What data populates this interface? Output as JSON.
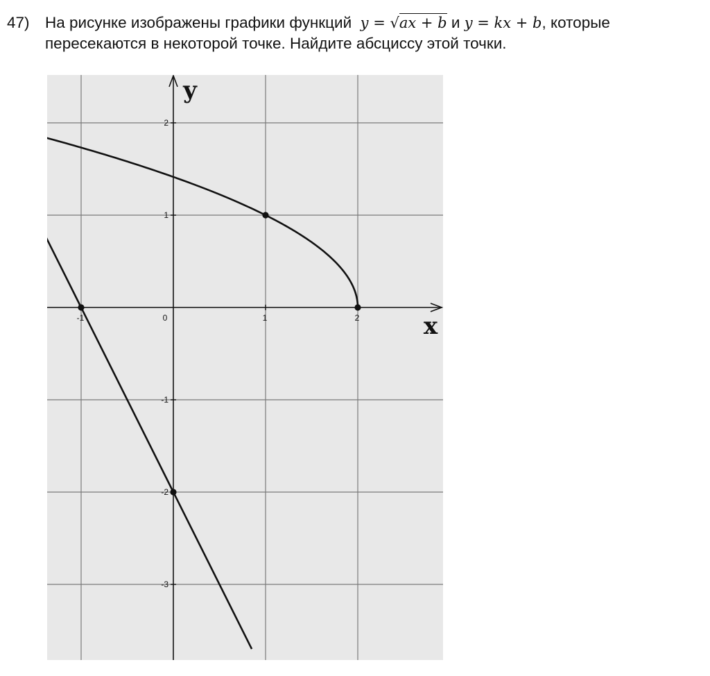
{
  "problem": {
    "number": "47)",
    "line1_text": "На рисунке изображены графики функций",
    "formula1_prefix": "y = ",
    "formula1_sqrt_symbol": "√",
    "formula1_radicand": "ax + b",
    "conjunction": "и",
    "formula2": "y = kx + b",
    "line1_tail": ", которые",
    "line2_text": "пересекаются в некоторой точке. Найдите абсциссу этой точки."
  },
  "graph": {
    "x_axis_label": "x",
    "y_axis_label": "y",
    "origin_label": "0",
    "x_tick_labels": [
      "-1",
      "1",
      "2"
    ],
    "y_tick_labels": [
      "2",
      "1",
      "-1",
      "-2",
      "-3"
    ],
    "colors": {
      "background": "#e8e8e8",
      "grid": "#7a7a7a",
      "axes": "#111111",
      "curve": "#111111"
    }
  },
  "chart_data": {
    "type": "line",
    "title": "",
    "xlabel": "x",
    "ylabel": "y",
    "xlim": [
      -1.4,
      2.9
    ],
    "ylim": [
      -3.8,
      2.5
    ],
    "grid": true,
    "series": [
      {
        "function": "y = √(ax + b)",
        "x": [
          -1.4,
          -1,
          -0.5,
          0,
          0.5,
          1,
          1.5,
          1.9,
          2
        ],
        "y": [
          1.84,
          1.73,
          1.58,
          1.41,
          1.22,
          1.0,
          0.71,
          0.32,
          0
        ]
      },
      {
        "function": "y = kx + b",
        "x": [
          -1.4,
          -1,
          0,
          0.85
        ],
        "y": [
          0.8,
          0,
          -2,
          -3.7
        ]
      }
    ],
    "marked_points": [
      {
        "x": 1,
        "y": 1
      },
      {
        "x": 2,
        "y": 0
      },
      {
        "x": -1,
        "y": 0
      },
      {
        "x": 0,
        "y": -2
      }
    ]
  }
}
